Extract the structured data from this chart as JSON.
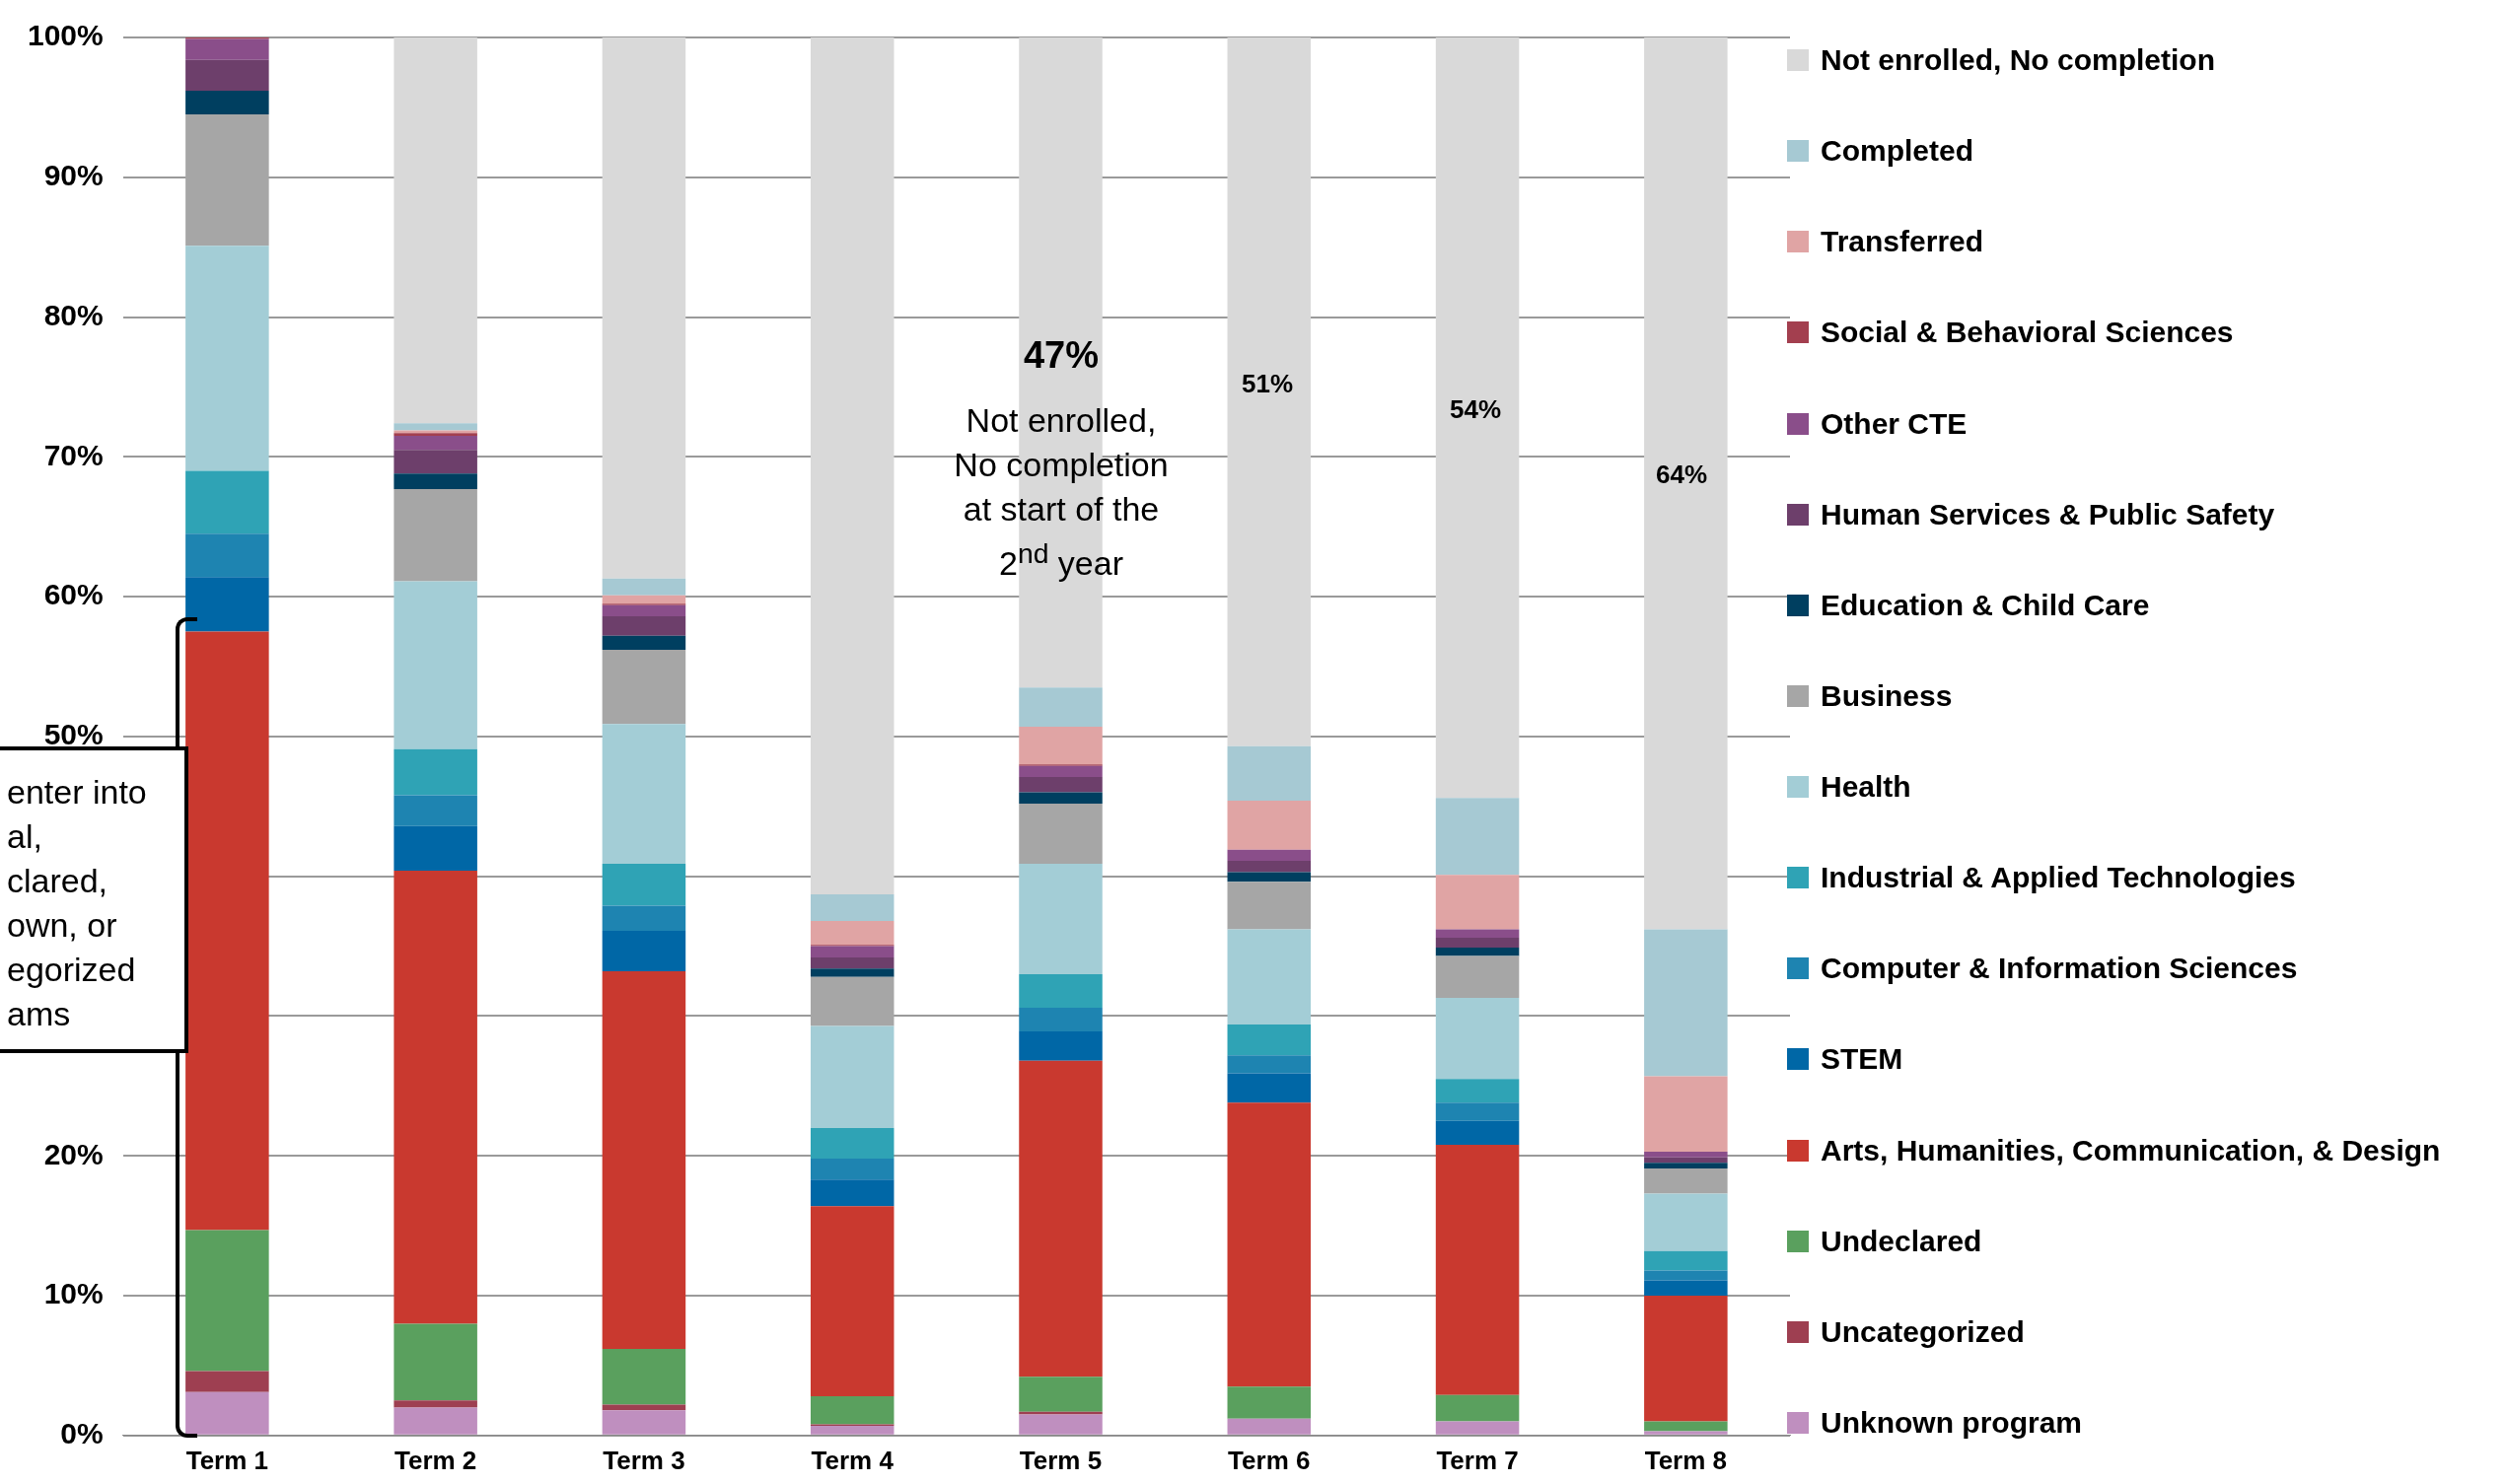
{
  "chart_data": {
    "type": "bar",
    "stacked": true,
    "categories": [
      "Term 1",
      "Term 2",
      "Term 3",
      "Term 4",
      "Term 5",
      "Term 6",
      "Term 7",
      "Term 8"
    ],
    "series": [
      {
        "name": "Unknown program",
        "color": "#bf8fbf",
        "values": [
          3.1,
          2.0,
          1.8,
          0.7,
          1.5,
          1.2,
          1.0,
          0.3
        ]
      },
      {
        "name": "Uncategorized",
        "color": "#9e3f51",
        "values": [
          1.5,
          0.5,
          0.4,
          0.1,
          0.2,
          0,
          0,
          0
        ]
      },
      {
        "name": "Undeclared",
        "color": "#5aa05e",
        "values": [
          10.1,
          5.5,
          4.0,
          2.0,
          2.5,
          2.3,
          1.9,
          0.7
        ]
      },
      {
        "name": "Arts, Humanities, Communication, & Design",
        "color": "#c9392f",
        "values": [
          42.8,
          32.4,
          27.0,
          13.6,
          22.6,
          20.3,
          17.9,
          9.0
        ]
      },
      {
        "name": "STEM",
        "color": "#0067a6",
        "values": [
          3.9,
          3.2,
          2.9,
          1.9,
          2.1,
          2.1,
          1.7,
          1.1
        ]
      },
      {
        "name": "Computer & Information Sciences",
        "color": "#1e84b1",
        "values": [
          3.1,
          2.2,
          1.8,
          1.5,
          1.7,
          1.3,
          1.3,
          0.7
        ]
      },
      {
        "name": "Industrial & Applied Technologies",
        "color": "#2fa3b5",
        "values": [
          4.5,
          3.3,
          3.0,
          2.2,
          2.4,
          2.2,
          1.7,
          1.4
        ]
      },
      {
        "name": "Health",
        "color": "#a3cdd6",
        "values": [
          16.1,
          12.0,
          10.0,
          7.3,
          7.9,
          6.8,
          5.8,
          4.1
        ]
      },
      {
        "name": "Business",
        "color": "#a6a6a6",
        "values": [
          9.4,
          6.6,
          5.3,
          3.5,
          4.3,
          3.4,
          3.0,
          1.8
        ]
      },
      {
        "name": "Education & Child Care",
        "color": "#003f60",
        "values": [
          1.7,
          1.1,
          1.0,
          0.6,
          0.8,
          0.7,
          0.6,
          0.4
        ]
      },
      {
        "name": "Human Services & Public Safety",
        "color": "#6d3f6b",
        "values": [
          2.2,
          1.7,
          1.4,
          0.8,
          1.1,
          0.8,
          0.7,
          0.4
        ]
      },
      {
        "name": "Other CTE",
        "color": "#8a4e8a",
        "values": [
          1.5,
          1.0,
          0.8,
          0.8,
          0.8,
          0.8,
          0.6,
          0.4
        ]
      },
      {
        "name": "Social & Behavioral Sciences",
        "color": "#a33f4f",
        "values": [
          0.1,
          0.2,
          0.1,
          0.1,
          0.1,
          0,
          0,
          0
        ]
      },
      {
        "name": "Transferred",
        "color": "#e0a4a4",
        "values": [
          0,
          0.2,
          0.6,
          1.7,
          2.7,
          3.5,
          3.9,
          5.4
        ]
      },
      {
        "name": "Completed",
        "color": "#a6c9d3",
        "values": [
          0,
          0.5,
          1.2,
          1.9,
          2.8,
          3.9,
          5.5,
          10.5
        ]
      },
      {
        "name": "Not enrolled, No completion",
        "color": "#d9d9d9",
        "values": [
          0,
          27.6,
          38.7,
          61.3,
          46.5,
          50.7,
          54.4,
          63.8
        ]
      }
    ],
    "ylim": [
      0,
      100
    ],
    "yticks": [
      {
        "value": 0,
        "label": "0%"
      },
      {
        "value": 10,
        "label": "10%"
      },
      {
        "value": 20,
        "label": "20%"
      },
      {
        "value": 30,
        "label": null
      },
      {
        "value": 40,
        "label": null
      },
      {
        "value": 50,
        "label": "50%"
      },
      {
        "value": 60,
        "label": "60%"
      },
      {
        "value": 70,
        "label": "70%"
      },
      {
        "value": 80,
        "label": "80%"
      },
      {
        "value": 90,
        "label": "90%"
      },
      {
        "value": 100,
        "label": "100%"
      }
    ],
    "grid": "y",
    "legend": "right",
    "annotations": [
      "47%",
      "Not enrolled,\nNo completion\nat start of the\n2$^{nd}$ year",
      "51%",
      "54%",
      "64%",
      "enter into\nal,\nclared,\nown, or\negorized\nams"
    ]
  }
}
